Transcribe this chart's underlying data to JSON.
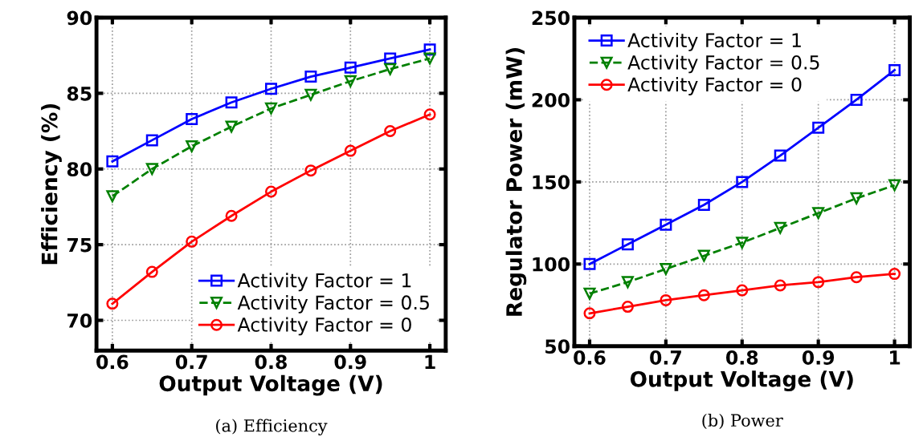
{
  "chart_data": [
    {
      "type": "line",
      "xlabel": "Output Voltage (V)",
      "ylabel": "Efficiency (%)",
      "annotations": [
        "(a) Efficiency"
      ],
      "x": [
        0.6,
        0.65,
        0.7,
        0.75,
        0.8,
        0.85,
        0.9,
        0.95,
        1
      ],
      "xlim": [
        0.58,
        1.02
      ],
      "xticks": [
        0.6,
        0.7,
        0.8,
        0.9,
        {
          "value": 1,
          "label": "1"
        }
      ],
      "ylim": [
        68,
        90
      ],
      "yticks": [
        70,
        75,
        80,
        85,
        90
      ],
      "grid": true,
      "legend": "bottom right",
      "series": [
        {
          "name": "Activity Factor = 1",
          "color": "#0000ff",
          "marker": "square",
          "line_style": "solid",
          "values": [
            80.5,
            81.9,
            83.3,
            84.4,
            85.3,
            86.1,
            86.7,
            87.3,
            87.9
          ]
        },
        {
          "name": "Activity Factor = 0.5",
          "color": "#008000",
          "marker": "triangle",
          "line_style": "dashed",
          "values": [
            78.2,
            80.0,
            81.5,
            82.8,
            84.0,
            84.9,
            85.8,
            86.6,
            87.3
          ]
        },
        {
          "name": "Activity Factor = 0",
          "color": "#ff0000",
          "marker": "circle",
          "line_style": "solid",
          "values": [
            71.1,
            73.2,
            75.2,
            76.9,
            78.5,
            79.9,
            81.2,
            82.5,
            83.6
          ]
        }
      ]
    },
    {
      "type": "line",
      "xlabel": "Output Voltage (V)",
      "ylabel": "Regulator Power (mW)",
      "annotations": [
        "(b) Power"
      ],
      "x": [
        0.6,
        0.65,
        0.7,
        0.75,
        0.8,
        0.85,
        0.9,
        0.95,
        1
      ],
      "xlim": [
        0.58,
        1.02
      ],
      "xticks": [
        0.6,
        0.7,
        0.8,
        0.9,
        {
          "value": 1,
          "label": "1"
        }
      ],
      "ylim": [
        50,
        250
      ],
      "yticks": [
        50,
        100,
        150,
        200,
        250
      ],
      "grid": true,
      "legend": "top left",
      "series": [
        {
          "name": "Activity Factor = 1",
          "color": "#0000ff",
          "marker": "square",
          "line_style": "solid",
          "values": [
            100,
            112,
            124,
            136,
            150,
            166,
            183,
            200,
            218
          ]
        },
        {
          "name": "Activity Factor = 0.5",
          "color": "#008000",
          "marker": "triangle",
          "line_style": "dashed",
          "values": [
            82,
            89,
            97,
            105,
            113,
            122,
            131,
            140,
            148
          ]
        },
        {
          "name": "Activity Factor = 0",
          "color": "#ff0000",
          "marker": "circle",
          "line_style": "solid",
          "values": [
            70,
            74,
            78,
            81,
            84,
            87,
            89,
            92,
            94
          ]
        }
      ]
    }
  ]
}
